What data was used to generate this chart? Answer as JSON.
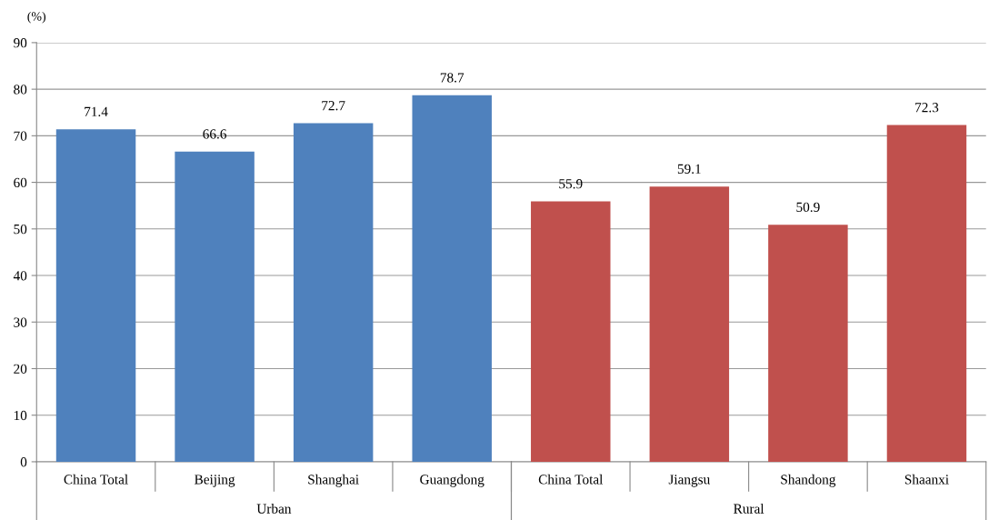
{
  "chart_data": {
    "type": "bar",
    "ylabel": "(%)",
    "categories": [
      "China Total",
      "Beijing",
      "Shanghai",
      "Guangdong",
      "China Total",
      "Jiangsu",
      "Shandong",
      "Shaanxi"
    ],
    "values": [
      71.4,
      66.6,
      72.7,
      78.7,
      55.9,
      59.1,
      50.9,
      72.3
    ],
    "colors": [
      "#4f81bd",
      "#4f81bd",
      "#4f81bd",
      "#4f81bd",
      "#c0504d",
      "#c0504d",
      "#c0504d",
      "#c0504d"
    ],
    "annotations": [
      "Urban",
      "Rural"
    ],
    "ylim": [
      0,
      90
    ],
    "yticks": [
      0,
      10,
      20,
      30,
      40,
      50,
      60,
      70,
      80,
      90
    ],
    "grid": "y",
    "data_labels": true
  }
}
